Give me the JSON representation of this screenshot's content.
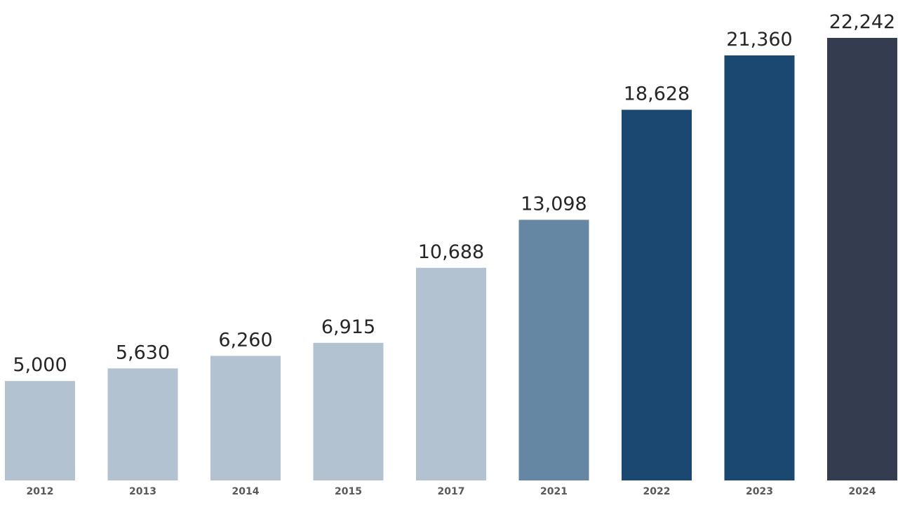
{
  "chart_data": {
    "type": "bar",
    "title": "",
    "xlabel": "",
    "ylabel": "",
    "categories": [
      "2012",
      "2013",
      "2014",
      "2015",
      "2017",
      "2021",
      "2022",
      "2023",
      "2024"
    ],
    "values": [
      5000,
      5630,
      6260,
      6915,
      10688,
      13098,
      18628,
      21360,
      22242
    ],
    "value_labels": [
      "5,000",
      "5,630",
      "6,260",
      "6,915",
      "10,688",
      "13,098",
      "18,628",
      "21,360",
      "22,242"
    ],
    "bar_colors": [
      "#b2c2d0",
      "#b2c2d0",
      "#b2c2d0",
      "#b2c2d0",
      "#b2c2d0",
      "#6687a3",
      "#1a4870",
      "#1a4870",
      "#333d4f"
    ],
    "ylim": [
      0,
      22242
    ],
    "grid": false,
    "legend": "none",
    "axis_visible": false
  }
}
